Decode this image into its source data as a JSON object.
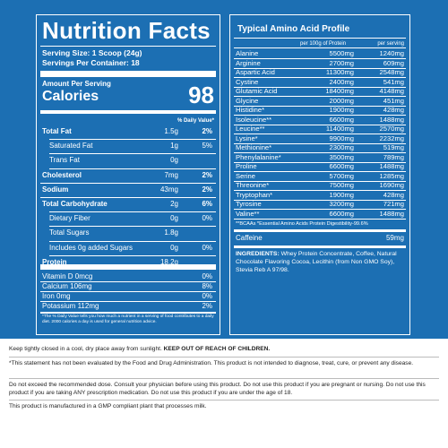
{
  "nutrition": {
    "title": "Nutrition Facts",
    "serving_size": "Serving Size: 1 Scoop (24g)",
    "servings_per_container": "Servings Per Container: 18",
    "amount_per_serving": "Amount Per Serving",
    "calories_label": "Calories",
    "calories_value": "98",
    "dv_header": "% Daily Value*",
    "rows": [
      {
        "name": "Total Fat",
        "amount": "1.5g",
        "dv": "2%",
        "bold": true,
        "indent": false
      },
      {
        "name": "Saturated Fat",
        "amount": "1g",
        "dv": "5%",
        "bold": false,
        "indent": true
      },
      {
        "name": "Trans Fat",
        "amount": "0g",
        "dv": "",
        "bold": false,
        "indent": true
      },
      {
        "name": "Cholesterol",
        "amount": "7mg",
        "dv": "2%",
        "bold": true,
        "indent": false
      },
      {
        "name": "Sodium",
        "amount": "43mg",
        "dv": "2%",
        "bold": true,
        "indent": false
      },
      {
        "name": "Total Carbohydrate",
        "amount": "2g",
        "dv": "6%",
        "bold": true,
        "indent": false
      },
      {
        "name": "Dietary Fiber",
        "amount": "0g",
        "dv": "0%",
        "bold": false,
        "indent": true
      },
      {
        "name": "Total Sugars",
        "amount": "1.8g",
        "dv": "",
        "bold": false,
        "indent": true
      },
      {
        "name": "Includes 0g added Sugars",
        "amount": "0g",
        "dv": "0%",
        "bold": false,
        "indent": true
      },
      {
        "name": "Protein",
        "amount": "18.2g",
        "dv": "",
        "bold": true,
        "indent": false
      }
    ],
    "vitamins": [
      {
        "name": "Vitamin D 0mcg",
        "dv": "0%"
      },
      {
        "name": "Calcium 106mg",
        "dv": "8%"
      },
      {
        "name": "Iron 0mg",
        "dv": "0%"
      },
      {
        "name": "Potassium 112mg",
        "dv": "2%"
      }
    ],
    "footnote": "*The % Daily Value tells you how much a nutrient in a serving of food contributes to a daily diet. 2000 calories a day is used for general nutrition advice."
  },
  "amino": {
    "title": "Typical Amino Acid Profile",
    "col1": "per 100g of Protein",
    "col2": "per serving",
    "rows": [
      {
        "name": "Alanine",
        "per100": "5500mg",
        "serving": "1240mg"
      },
      {
        "name": "Arginine",
        "per100": "2700mg",
        "serving": "609mg"
      },
      {
        "name": "Aspartic Acid",
        "per100": "11300mg",
        "serving": "2548mg"
      },
      {
        "name": "Cystine",
        "per100": "2400mg",
        "serving": "541mg"
      },
      {
        "name": "Glutamic Acid",
        "per100": "18400mg",
        "serving": "4148mg"
      },
      {
        "name": "Glycine",
        "per100": "2000mg",
        "serving": "451mg"
      },
      {
        "name": "Histidine*",
        "per100": "1900mg",
        "serving": "428mg"
      },
      {
        "name": "Isoleucine**",
        "per100": "6600mg",
        "serving": "1488mg"
      },
      {
        "name": "Leucine**",
        "per100": "11400mg",
        "serving": "2570mg"
      },
      {
        "name": "Lysine*",
        "per100": "9900mg",
        "serving": "2232mg"
      },
      {
        "name": "Methionine*",
        "per100": "2300mg",
        "serving": "519mg"
      },
      {
        "name": "Phenylalanine*",
        "per100": "3500mg",
        "serving": "789mg"
      },
      {
        "name": "Proline",
        "per100": "6600mg",
        "serving": "1488mg"
      },
      {
        "name": "Serine",
        "per100": "5700mg",
        "serving": "1285mg"
      },
      {
        "name": "Threonine*",
        "per100": "7500mg",
        "serving": "1690mg"
      },
      {
        "name": "Tryptophan*",
        "per100": "1900mg",
        "serving": "428mg"
      },
      {
        "name": "Tyrosine",
        "per100": "3200mg",
        "serving": "721mg"
      },
      {
        "name": "Valine**",
        "per100": "6600mg",
        "serving": "1488mg"
      }
    ],
    "note": "**BCAAs  *Essential Amino Acids  Protein Digestibility-99.6%",
    "caffeine_label": "Caffeine",
    "caffeine_value": "59mg",
    "ingredients_label": "INGREDIENTS:",
    "ingredients_text": " Whey Protein Concentrate, Coffee, Natural Chocolate Flavoring Cocoa, Lecithin (from Non GMO Soy), Stevia Reb A 97/98."
  },
  "bottom": {
    "storage": "Keep tightly closed in a cool, dry place away from sunlight. ",
    "storage_bold": "KEEP OUT OF REACH OF CHILDREN.",
    "fda": "*This statement has not been evaluated by the Food and Drug Administration. This product is not intended to diagnose, treat, cure, or prevent any disease.",
    "warning": "Do not exceed the recommended dose. Consult your physician before using this product. Do not use this product if you are pregnant or nursing. Do not use this product if you are taking ANY prescription medication. Do not use this product if you are under the age of 18.",
    "gmp": "This product is manufactured in a GMP compliant plant that processes milk."
  },
  "colors": {
    "panel_blue": "#1c6fb3",
    "text": "#ffffff"
  }
}
